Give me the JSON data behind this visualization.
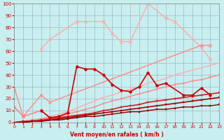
{
  "xlabel": "Vent moyen/en rafales ( km/h )",
  "background_color": "#c8eef0",
  "grid_color": "#a0b8c0",
  "ylim": [
    0,
    100
  ],
  "xlim": [
    0,
    23
  ],
  "yticks": [
    0,
    10,
    20,
    30,
    40,
    50,
    60,
    70,
    80,
    90,
    100
  ],
  "xticks": [
    0,
    1,
    2,
    3,
    4,
    5,
    6,
    7,
    8,
    9,
    10,
    11,
    12,
    13,
    14,
    15,
    16,
    17,
    18,
    19,
    20,
    21,
    22,
    23
  ],
  "series": [
    {
      "name": "light_pink_volatile",
      "color": "#ffaaaa",
      "lw": 1.0,
      "marker": "x",
      "ms": 3.5,
      "x": [
        3,
        4,
        7,
        8,
        10,
        11,
        12,
        13,
        15,
        17,
        18,
        21,
        22
      ],
      "y": [
        62,
        70,
        85,
        85,
        85,
        75,
        68,
        68,
        100,
        88,
        85,
        63,
        53
      ]
    },
    {
      "name": "medium_pink_volatile",
      "color": "#ff8888",
      "lw": 1.0,
      "marker": "x",
      "ms": 3.5,
      "x": [
        0,
        1,
        3,
        4,
        21,
        22
      ],
      "y": [
        29,
        5,
        23,
        17,
        65,
        65
      ]
    },
    {
      "name": "pink_short",
      "color": "#ff7777",
      "lw": 1.0,
      "marker": "x",
      "ms": 3.0,
      "x": [
        0,
        1,
        3,
        4
      ],
      "y": [
        13,
        5,
        10,
        4
      ]
    },
    {
      "name": "red_diamond",
      "color": "#cc0000",
      "lw": 1.2,
      "marker": "D",
      "ms": 2.0,
      "x": [
        3,
        4,
        5,
        6,
        7,
        8,
        9,
        10,
        11,
        12,
        13,
        14,
        15,
        16,
        17,
        19,
        20,
        21,
        22
      ],
      "y": [
        10,
        4,
        5,
        8,
        47,
        45,
        45,
        40,
        32,
        27,
        26,
        30,
        42,
        31,
        33,
        23,
        23,
        29,
        23
      ]
    },
    {
      "name": "linear_upper_pink",
      "color": "#ffaaaa",
      "lw": 1.0,
      "marker": null,
      "ms": 0,
      "x": [
        0,
        1,
        2,
        3,
        4,
        5,
        6,
        7,
        8,
        9,
        10,
        11,
        12,
        13,
        14,
        15,
        16,
        17,
        18,
        19,
        20,
        21,
        22,
        23
      ],
      "y": [
        0,
        1,
        2,
        3,
        5,
        7,
        9,
        12,
        15,
        18,
        21,
        23,
        26,
        28,
        30,
        33,
        35,
        37,
        40,
        42,
        44,
        46,
        48,
        50
      ]
    },
    {
      "name": "linear_mid_pink",
      "color": "#ff8888",
      "lw": 1.0,
      "marker": "s",
      "ms": 1.5,
      "x": [
        0,
        1,
        2,
        3,
        4,
        5,
        6,
        7,
        8,
        9,
        10,
        11,
        12,
        13,
        14,
        15,
        16,
        17,
        18,
        19,
        20,
        21,
        22,
        23
      ],
      "y": [
        0,
        1,
        2,
        3,
        4,
        5,
        7,
        9,
        11,
        13,
        16,
        18,
        20,
        22,
        24,
        26,
        28,
        30,
        32,
        33,
        35,
        36,
        38,
        40
      ]
    },
    {
      "name": "linear_red1",
      "color": "#cc2222",
      "lw": 1.2,
      "marker": "s",
      "ms": 1.5,
      "x": [
        0,
        1,
        2,
        3,
        4,
        5,
        6,
        7,
        8,
        9,
        10,
        11,
        12,
        13,
        14,
        15,
        16,
        17,
        18,
        19,
        20,
        21,
        22,
        23
      ],
      "y": [
        0,
        1,
        1,
        2,
        3,
        4,
        5,
        6,
        7,
        8,
        10,
        11,
        13,
        14,
        15,
        17,
        18,
        19,
        20,
        21,
        22,
        23,
        24,
        25
      ]
    },
    {
      "name": "linear_red2",
      "color": "#aa0000",
      "lw": 1.2,
      "marker": "s",
      "ms": 1.5,
      "x": [
        0,
        1,
        2,
        3,
        4,
        5,
        6,
        7,
        8,
        9,
        10,
        11,
        12,
        13,
        14,
        15,
        16,
        17,
        18,
        19,
        20,
        21,
        22,
        23
      ],
      "y": [
        0,
        0,
        1,
        1,
        2,
        3,
        4,
        5,
        6,
        7,
        8,
        9,
        10,
        11,
        12,
        13,
        14,
        15,
        16,
        17,
        18,
        19,
        20,
        21
      ]
    },
    {
      "name": "linear_dark_red",
      "color": "#880000",
      "lw": 1.0,
      "marker": "s",
      "ms": 1.5,
      "x": [
        0,
        1,
        2,
        3,
        4,
        5,
        6,
        7,
        8,
        9,
        10,
        11,
        12,
        13,
        14,
        15,
        16,
        17,
        18,
        19,
        20,
        21,
        22,
        23
      ],
      "y": [
        0,
        0,
        1,
        1,
        2,
        2,
        3,
        4,
        5,
        5,
        6,
        7,
        8,
        9,
        9,
        10,
        11,
        11,
        12,
        13,
        13,
        14,
        14,
        15
      ]
    }
  ]
}
